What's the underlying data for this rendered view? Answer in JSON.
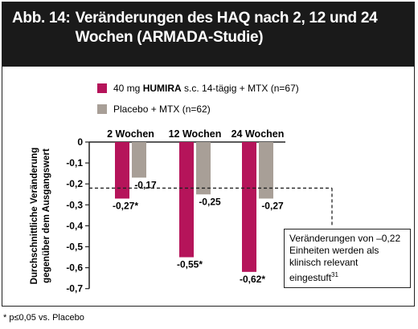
{
  "title": {
    "prefix": "Abb. 14:",
    "text": "Veränderungen des HAQ nach 2, 12 und 24 Wochen (ARMADA-Studie)"
  },
  "legend": [
    {
      "label_prefix": "40 mg ",
      "label_bold": "HUMIRA",
      "label_suffix": " s.c. 14-tägig + MTX (n=67)",
      "color": "#b5145a"
    },
    {
      "label_prefix": "Placebo + MTX (n=62)",
      "label_bold": "",
      "label_suffix": "",
      "color": "#a89f97"
    }
  ],
  "ylabel_line1": "Durchschnittliche Veränderung",
  "ylabel_line2": "gegenüber dem Ausgangswert",
  "note": "Veränderungen von –0,22 Einheiten werden als klinisch relevant eingestuft",
  "note_sup": "31",
  "footnote": "* p≤0,05 vs. Placebo",
  "chart_data": {
    "type": "bar",
    "categories": [
      "2 Wochen",
      "12 Wochen",
      "24 Wochen"
    ],
    "series": [
      {
        "name": "40 mg HUMIRA s.c. 14-tägig + MTX (n=67)",
        "color": "#b5145a",
        "values": [
          -0.27,
          -0.55,
          -0.62
        ],
        "labels": [
          "-0,27*",
          "-0,55*",
          "-0,62*"
        ]
      },
      {
        "name": "Placebo + MTX (n=62)",
        "color": "#a89f97",
        "values": [
          -0.17,
          -0.25,
          -0.27
        ],
        "labels": [
          "-0,17",
          "-0,25",
          "-0,27"
        ]
      }
    ],
    "yticks": [
      0,
      -0.1,
      -0.2,
      -0.3,
      -0.4,
      -0.5,
      -0.6,
      -0.7
    ],
    "ytick_labels": [
      "0",
      "-0,1",
      "-0,2",
      "-0,3",
      "-0,4",
      "-0,5",
      "-0,6",
      "-0,7"
    ],
    "ylim": [
      -0.7,
      0
    ],
    "reference_line": -0.22,
    "ylabel": "Durchschnittliche Veränderung gegenüber dem Ausgangswert"
  }
}
